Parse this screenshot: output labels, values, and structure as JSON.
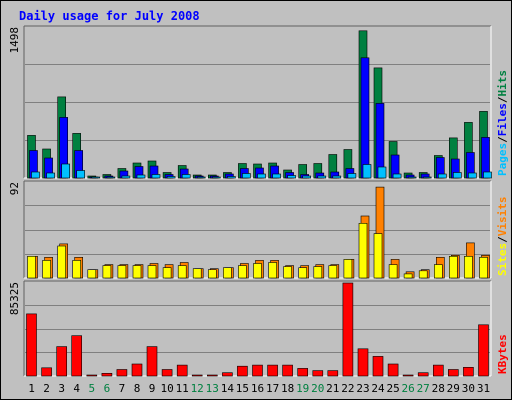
{
  "chart_data": {
    "type": "bar",
    "title": "Daily usage for July 2008",
    "categories": [
      "1",
      "2",
      "3",
      "4",
      "5",
      "6",
      "7",
      "8",
      "9",
      "10",
      "11",
      "12",
      "13",
      "14",
      "15",
      "16",
      "17",
      "18",
      "19",
      "20",
      "21",
      "22",
      "23",
      "24",
      "25",
      "26",
      "27",
      "28",
      "29",
      "30",
      "31"
    ],
    "weekend_days": [
      "5",
      "6",
      "12",
      "13",
      "19",
      "20",
      "26",
      "27"
    ],
    "panels": [
      {
        "id": "hits-files-pages",
        "ymax_label": "1498",
        "ymax": 1498,
        "legend": [
          "Pages",
          "/",
          "Files",
          "/",
          "Hits"
        ],
        "series": [
          {
            "name": "Hits",
            "color": "#008040",
            "values": [
              425,
              290,
              810,
              445,
              20,
              35,
              95,
              150,
              170,
              55,
              125,
              30,
              30,
              55,
              145,
              140,
              150,
              80,
              135,
              145,
              235,
              285,
              1470,
              1100,
              365,
              50,
              55,
              225,
              400,
              555,
              665
            ]
          },
          {
            "name": "Files",
            "color": "#0000ff",
            "values": [
              275,
              200,
              605,
              275,
              10,
              20,
              70,
              115,
              120,
              35,
              90,
              20,
              20,
              40,
              95,
              100,
              120,
              55,
              35,
              50,
              60,
              95,
              1200,
              745,
              230,
              30,
              40,
              205,
              190,
              255,
              405
            ]
          },
          {
            "name": "Pages",
            "color": "#00c0ff",
            "values": [
              60,
              50,
              140,
              75,
              5,
              5,
              20,
              30,
              35,
              15,
              35,
              10,
              10,
              15,
              45,
              40,
              40,
              25,
              20,
              20,
              20,
              45,
              135,
              110,
              40,
              10,
              10,
              40,
              55,
              50,
              60
            ]
          }
        ]
      },
      {
        "id": "visits-sites",
        "ymax_label": "92",
        "ymax": 92,
        "legend": [
          "Sites",
          "/",
          "Visits"
        ],
        "series": [
          {
            "name": "Visits",
            "color": "#ff8000",
            "values": [
              21,
              20,
              33,
              20,
              8,
              13,
              13,
              13,
              14,
              13,
              15,
              9,
              9,
              10,
              14,
              17,
              17,
              12,
              12,
              13,
              13,
              18,
              60,
              88,
              18,
              6,
              8,
              20,
              22,
              34,
              22
            ]
          },
          {
            "name": "Sites",
            "color": "#ffff00",
            "values": [
              21,
              17,
              31,
              17,
              8,
              12,
              12,
              12,
              12,
              10,
              12,
              9,
              8,
              10,
              12,
              14,
              15,
              11,
              10,
              11,
              12,
              18,
              53,
              43,
              13,
              4,
              7,
              13,
              21,
              21,
              20
            ]
          }
        ]
      },
      {
        "id": "kbytes",
        "ymax_label": "85325",
        "ymax": 85325,
        "legend": [
          "KBytes"
        ],
        "series": [
          {
            "name": "KBytes",
            "color": "#ff0000",
            "values": [
              57000,
              7500,
              27000,
              37000,
              600,
              2500,
              6000,
              11000,
              27000,
              6000,
              10000,
              600,
              600,
              3000,
              9000,
              10000,
              10000,
              10000,
              7000,
              5000,
              5000,
              85325,
              25000,
              18000,
              11000,
              700,
              3000,
              10000,
              6000,
              8000,
              47000
            ]
          }
        ]
      }
    ]
  }
}
